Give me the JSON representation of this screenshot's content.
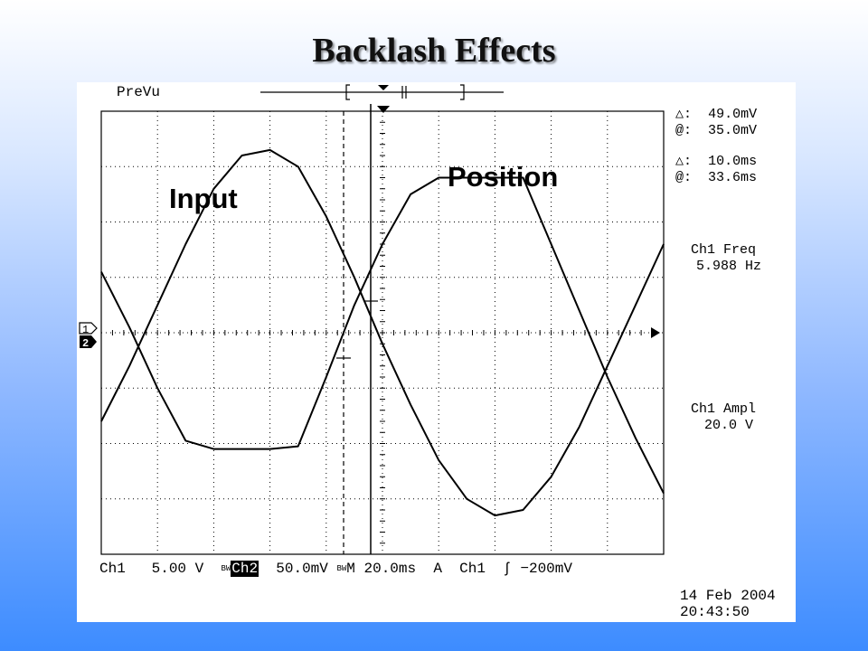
{
  "slide": {
    "title": "Backlash Effects"
  },
  "scope": {
    "mode": "PreVu",
    "cursor_readouts": [
      {
        "symbol": "△:",
        "value": "49.0mV"
      },
      {
        "symbol": "@:",
        "value": "35.0mV"
      },
      {
        "symbol": "△:",
        "value": "10.0ms"
      },
      {
        "symbol": "@:",
        "value": "33.6ms"
      }
    ],
    "measurements": [
      {
        "label": "Ch1 Freq",
        "value": "5.988 Hz"
      },
      {
        "label": "Ch1 Ampl",
        "value": "20.0 V"
      }
    ],
    "bottom_bar": {
      "ch1_label": "Ch1",
      "ch1_scale": "5.00 V",
      "bw1": "B",
      "bw1b": "W",
      "ch2_label": "Ch2",
      "ch2_scale": "50.0mV",
      "bw2": "B",
      "bw2b": "W",
      "timebase": "M 20.0ms",
      "trigger_mode": "A",
      "trigger_source": "Ch1",
      "trigger_slope": "ʃ",
      "trigger_level": "−200mV"
    },
    "date": "14 Feb 2004",
    "time": "20:43:50",
    "channel_markers": [
      "1",
      "2"
    ],
    "accent_color": "#000000",
    "grid_color": "#000000"
  },
  "chart_data": {
    "type": "line",
    "title": "Backlash Effects",
    "xlabel": "",
    "ylabel": "",
    "x_divisions": 10,
    "y_divisions": 8,
    "xlim": [
      0,
      10
    ],
    "ylim": [
      -4,
      4
    ],
    "grid": true,
    "annotations": [
      "Input",
      "Position"
    ],
    "series": [
      {
        "name": "Input",
        "x": [
          0,
          0.5,
          1,
          1.5,
          2,
          2.5,
          3,
          3.5,
          4,
          4.5,
          5,
          5.5,
          6,
          6.5,
          7,
          7.5,
          8,
          8.5,
          9,
          9.5,
          10
        ],
        "y": [
          -1.6,
          -0.6,
          0.5,
          1.6,
          2.6,
          3.2,
          3.3,
          3.0,
          2.1,
          1.0,
          -0.2,
          -1.3,
          -2.3,
          -3.0,
          -3.3,
          -3.2,
          -2.6,
          -1.7,
          -0.6,
          0.5,
          1.6
        ]
      },
      {
        "name": "Position",
        "x": [
          0,
          0.5,
          1,
          1.5,
          2,
          2.5,
          3,
          3.5,
          4,
          4.5,
          5,
          5.5,
          6,
          6.5,
          7,
          7.5,
          8,
          8.5,
          9,
          9.5,
          10
        ],
        "y": [
          1.1,
          0.1,
          -1.0,
          -1.95,
          -2.1,
          -2.1,
          -2.1,
          -2.05,
          -0.8,
          0.5,
          1.6,
          2.5,
          2.8,
          2.8,
          2.8,
          2.8,
          1.6,
          0.4,
          -0.8,
          -1.9,
          -2.9
        ]
      }
    ]
  }
}
